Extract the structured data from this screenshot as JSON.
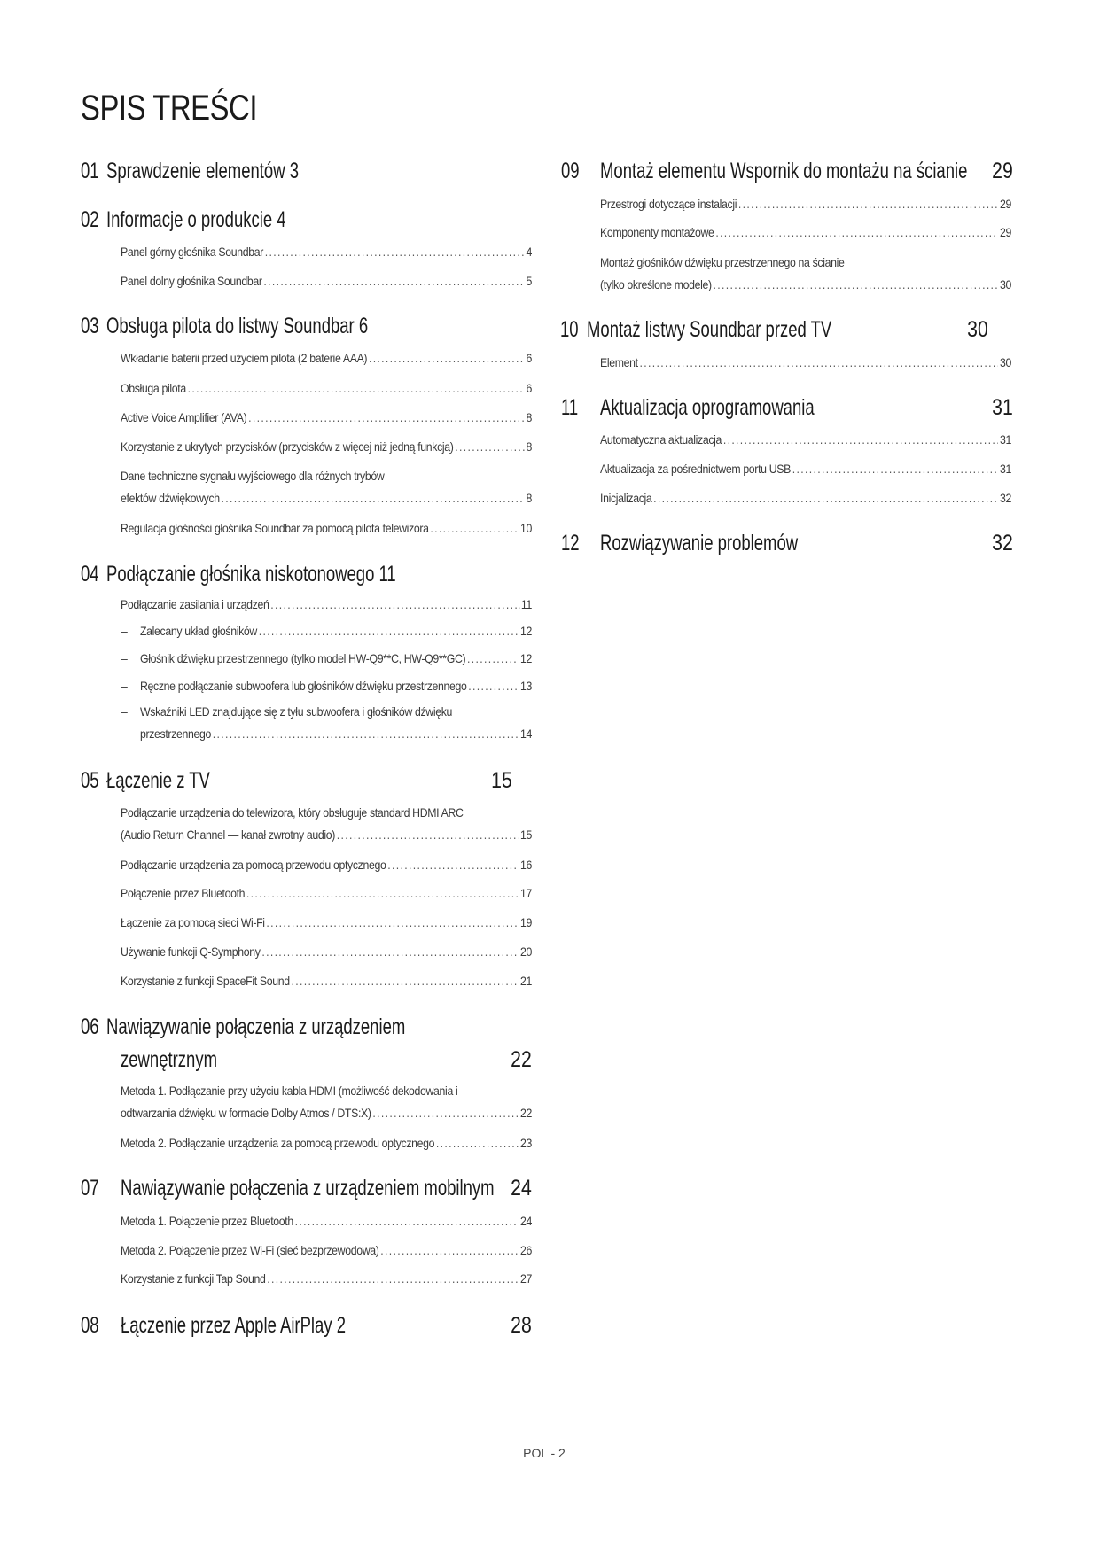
{
  "page_title": "SPIS TREŚCI",
  "footer": "POL - 2",
  "sections": [
    {
      "num": "01",
      "title": [
        "Sprawdzenie elementów"
      ],
      "page": "3",
      "items": []
    },
    {
      "num": "02",
      "title": [
        "Informacje o produkcie"
      ],
      "page": "4",
      "items": [
        {
          "lines": [
            "Panel górny głośnika Soundbar"
          ],
          "page": "4"
        },
        {
          "lines": [
            "Panel dolny głośnika Soundbar"
          ],
          "page": "5"
        }
      ]
    },
    {
      "num": "03",
      "title": [
        "Obsługa pilota do listwy Soundbar"
      ],
      "page": "6",
      "items": [
        {
          "lines": [
            "Wkładanie baterii przed użyciem pilota (2 baterie AAA)"
          ],
          "page": "6"
        },
        {
          "lines": [
            "Obsługa pilota"
          ],
          "page": "6"
        },
        {
          "lines": [
            "Active Voice Amplifier (AVA)"
          ],
          "page": "8"
        },
        {
          "lines": [
            "Korzystanie z ukrytych przycisków (przycisków z więcej niż jedną funkcją)"
          ],
          "page": "8"
        },
        {
          "lines": [
            "Dane techniczne sygnału wyjściowego dla różnych trybów",
            "efektów dźwiękowych"
          ],
          "page": "8"
        },
        {
          "lines": [
            "Regulacja głośności głośnika Soundbar za pomocą pilota telewizora"
          ],
          "page": "10"
        }
      ]
    },
    {
      "num": "04",
      "title": [
        "Podłączanie głośnika niskotonowego"
      ],
      "page": "11",
      "items": [
        {
          "lines": [
            "Podłączanie zasilania i urządzeń"
          ],
          "page": "11"
        },
        {
          "marker": "–",
          "lines": [
            "Zalecany układ głośników"
          ],
          "page": "12"
        },
        {
          "marker": "–",
          "lines": [
            "Głośnik dźwięku przestrzennego (tylko model HW-Q9**C, HW-Q9**GC)"
          ],
          "page": "12"
        },
        {
          "marker": "–",
          "lines": [
            "Ręczne podłączanie subwoofera lub głośników dźwięku przestrzennego"
          ],
          "page": "13"
        },
        {
          "marker": "–",
          "lines": [
            "Wskaźniki LED znajdujące się z tyłu subwoofera i głośników dźwięku",
            "przestrzennego"
          ],
          "page": "14"
        }
      ]
    },
    {
      "num": "05",
      "title": [
        "Łączenie z TV"
      ],
      "page": "15",
      "items": [
        {
          "lines": [
            "Podłączanie urządzenia do telewizora, który obsługuje standard HDMI ARC",
            "(Audio Return Channel — kanał zwrotny audio)"
          ],
          "page": "15"
        },
        {
          "lines": [
            "Podłączanie urządzenia za pomocą przewodu optycznego"
          ],
          "page": "16"
        },
        {
          "lines": [
            "Połączenie przez Bluetooth"
          ],
          "page": "17"
        },
        {
          "lines": [
            "Łączenie za pomocą sieci Wi-Fi"
          ],
          "page": "19"
        },
        {
          "lines": [
            "Używanie funkcji Q-Symphony"
          ],
          "page": "20"
        },
        {
          "lines": [
            "Korzystanie z funkcji SpaceFit Sound"
          ],
          "page": "21"
        }
      ]
    },
    {
      "num": "06",
      "title": [
        "Nawiązywanie połączenia z urządzeniem",
        "zewnętrznym"
      ],
      "page": "22",
      "items": [
        {
          "lines": [
            "Metoda 1. Podłączanie przy użyciu kabla HDMI (możliwość dekodowania i",
            "odtwarzania dźwięku w formacie Dolby Atmos / DTS:X)"
          ],
          "page": "22"
        },
        {
          "lines": [
            "Metoda 2. Podłączanie urządzenia za pomocą przewodu optycznego"
          ],
          "page": "23"
        }
      ]
    },
    {
      "num": "07",
      "title": [
        "Nawiązywanie połączenia z urządzeniem mobilnym"
      ],
      "page": "24",
      "items": [
        {
          "lines": [
            "Metoda 1. Połączenie przez Bluetooth"
          ],
          "page": "24"
        },
        {
          "lines": [
            "Metoda 2. Połączenie przez Wi-Fi (sieć bezprzewodowa)"
          ],
          "page": "26"
        },
        {
          "lines": [
            "Korzystanie z funkcji Tap Sound"
          ],
          "page": "27"
        }
      ]
    },
    {
      "num": "08",
      "title": [
        "Łączenie przez Apple AirPlay 2"
      ],
      "page": "28",
      "items": []
    },
    {
      "num": "09",
      "title": [
        "Montaż elementu Wspornik do montażu na ścianie"
      ],
      "page": "29",
      "items": [
        {
          "lines": [
            "Przestrogi dotyczące instalacji"
          ],
          "page": "29"
        },
        {
          "lines": [
            "Komponenty montażowe"
          ],
          "page": "29"
        },
        {
          "lines": [
            "Montaż głośników dźwięku przestrzennego na ścianie",
            "(tylko określone modele)"
          ],
          "page": "30"
        }
      ]
    },
    {
      "num": "10",
      "title": [
        "Montaż listwy Soundbar przed TV"
      ],
      "page": "30",
      "items": [
        {
          "lines": [
            "Element"
          ],
          "page": "30"
        }
      ]
    },
    {
      "num": "11",
      "title": [
        "Aktualizacja oprogramowania"
      ],
      "page": "31",
      "items": [
        {
          "lines": [
            "Automatyczna aktualizacja"
          ],
          "page": "31"
        },
        {
          "lines": [
            "Aktualizacja za pośrednictwem portu USB"
          ],
          "page": "31"
        },
        {
          "lines": [
            "Inicjalizacja"
          ],
          "page": "32"
        }
      ]
    },
    {
      "num": "12",
      "title": [
        "Rozwiązywanie problemów"
      ],
      "page": "32",
      "items": []
    }
  ]
}
